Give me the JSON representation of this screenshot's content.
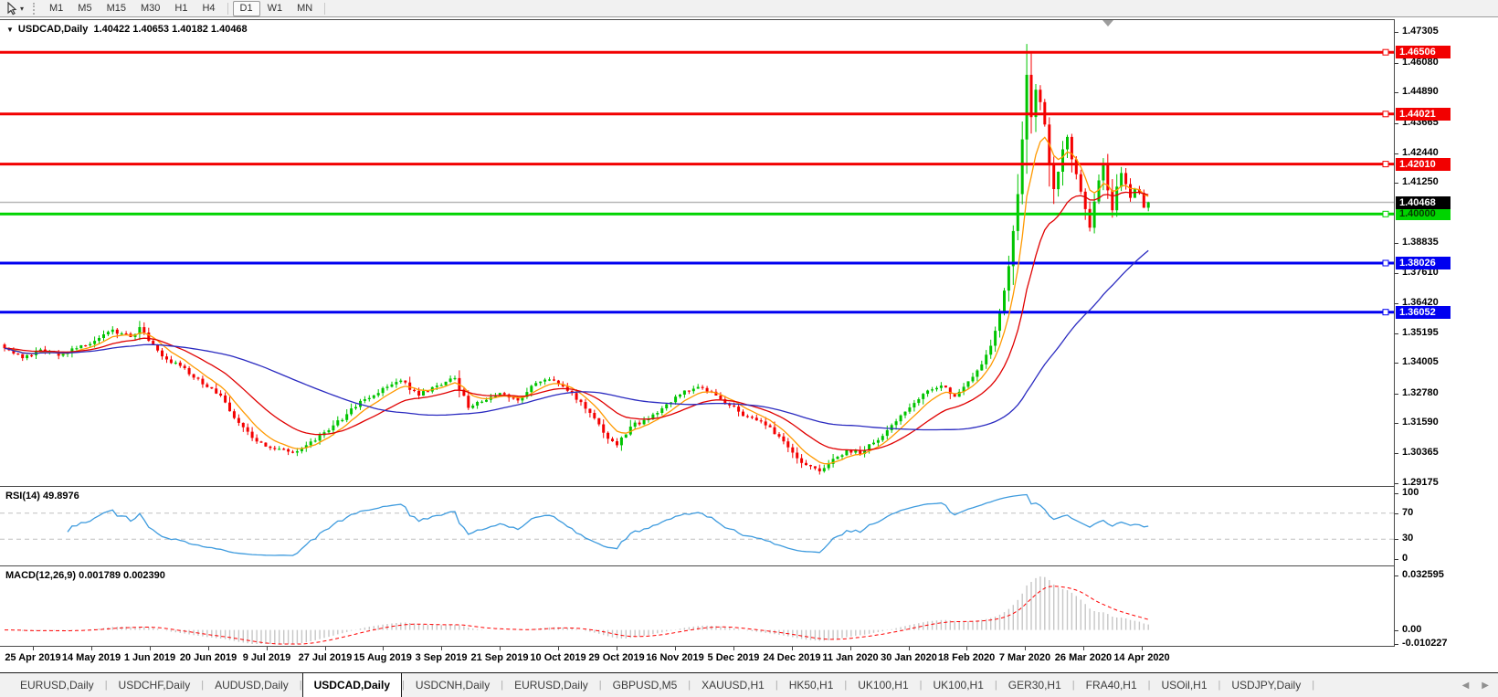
{
  "toolbar": {
    "tool_icon": "pointer-cursor",
    "timeframes": [
      "M1",
      "M5",
      "M15",
      "M30",
      "H1",
      "H4",
      "D1",
      "W1",
      "MN"
    ],
    "active_timeframe": "D1"
  },
  "chart": {
    "title_symbol": "USDCAD,Daily",
    "ohlc_text": "1.40422 1.40653 1.40182 1.40468"
  },
  "chart_data": {
    "type": "candlestick",
    "symbol": "USDCAD",
    "period": "Daily",
    "bars": 255,
    "seed": 42,
    "ohlc_current": {
      "open": 1.40422,
      "high": 1.40653,
      "low": 1.40182,
      "close": 1.40468
    },
    "candle_colors": {
      "up": "#00c400",
      "down": "#f40000"
    },
    "price_axis": {
      "max": 1.478,
      "min": 1.2906,
      "ticks": [
        "1.47305",
        "1.46080",
        "1.44890",
        "1.43665",
        "1.42440",
        "1.41250",
        "1.38835",
        "1.37610",
        "1.36420",
        "1.35195",
        "1.34005",
        "1.32780",
        "1.31590",
        "1.30365",
        "1.29175"
      ]
    },
    "hlines": [
      {
        "price": 1.46506,
        "label": "1.46506",
        "color": "#f20000",
        "badge_bg": "#f20000",
        "badge_fg": "#ffffff",
        "width": 3
      },
      {
        "price": 1.44021,
        "label": "1.44021",
        "color": "#f20000",
        "badge_bg": "#f20000",
        "badge_fg": "#ffffff",
        "width": 3
      },
      {
        "price": 1.4201,
        "label": "1.42010",
        "color": "#f20000",
        "badge_bg": "#f20000",
        "badge_fg": "#ffffff",
        "width": 3
      },
      {
        "price": 1.4,
        "label": "1.40000",
        "color": "#00d400",
        "badge_bg": "#00d400",
        "badge_fg": "#063800",
        "width": 3
      },
      {
        "price": 1.38026,
        "label": "1.38026",
        "color": "#0000f0",
        "badge_bg": "#0000f0",
        "badge_fg": "#ffffff",
        "width": 3
      },
      {
        "price": 1.36052,
        "label": "1.36052",
        "color": "#0000f0",
        "badge_bg": "#0000f0",
        "badge_fg": "#ffffff",
        "width": 3
      }
    ],
    "current_price": {
      "value": 1.40468,
      "label": "1.40468",
      "line_color": "#b8b8b8",
      "badge_bg": "#000000",
      "badge_fg": "#ffffff"
    },
    "moving_averages": [
      {
        "type": "ema",
        "period": 7,
        "color": "#ff9900"
      },
      {
        "type": "ema",
        "period": 20,
        "color": "#e00000"
      },
      {
        "type": "sma",
        "period": 52,
        "color": "#2a2ac0"
      }
    ],
    "close_anchors": [
      [
        0,
        1.346
      ],
      [
        4,
        1.342
      ],
      [
        8,
        1.3455
      ],
      [
        12,
        1.343
      ],
      [
        16,
        1.346
      ],
      [
        20,
        1.349
      ],
      [
        24,
        1.3535
      ],
      [
        28,
        1.3505
      ],
      [
        30,
        1.3545
      ],
      [
        33,
        1.3475
      ],
      [
        36,
        1.3415
      ],
      [
        40,
        1.338
      ],
      [
        44,
        1.3315
      ],
      [
        48,
        1.327
      ],
      [
        52,
        1.316
      ],
      [
        56,
        1.3085
      ],
      [
        60,
        1.3055
      ],
      [
        64,
        1.304
      ],
      [
        68,
        1.3085
      ],
      [
        72,
        1.313
      ],
      [
        76,
        1.3195
      ],
      [
        80,
        1.3255
      ],
      [
        84,
        1.33
      ],
      [
        88,
        1.333
      ],
      [
        92,
        1.327
      ],
      [
        96,
        1.331
      ],
      [
        100,
        1.334
      ],
      [
        103,
        1.322
      ],
      [
        106,
        1.3245
      ],
      [
        110,
        1.328
      ],
      [
        114,
        1.325
      ],
      [
        118,
        1.332
      ],
      [
        122,
        1.333
      ],
      [
        126,
        1.328
      ],
      [
        130,
        1.32
      ],
      [
        133,
        1.312
      ],
      [
        136,
        1.307
      ],
      [
        139,
        1.3145
      ],
      [
        143,
        1.3175
      ],
      [
        147,
        1.3235
      ],
      [
        151,
        1.329
      ],
      [
        155,
        1.33
      ],
      [
        158,
        1.327
      ],
      [
        161,
        1.323
      ],
      [
        165,
        1.3185
      ],
      [
        169,
        1.315
      ],
      [
        172,
        1.3105
      ],
      [
        175,
        1.304
      ],
      [
        178,
        1.299
      ],
      [
        181,
        1.2965
      ],
      [
        184,
        1.3015
      ],
      [
        187,
        1.305
      ],
      [
        190,
        1.3035
      ],
      [
        193,
        1.308
      ],
      [
        196,
        1.313
      ],
      [
        199,
        1.319
      ],
      [
        202,
        1.324
      ],
      [
        205,
        1.329
      ],
      [
        208,
        1.331
      ],
      [
        211,
        1.3265
      ],
      [
        213,
        1.3305
      ],
      [
        215,
        1.3345
      ],
      [
        217,
        1.3395
      ],
      [
        219,
        1.347
      ],
      [
        221,
        1.36
      ],
      [
        223,
        1.379
      ],
      [
        225,
        1.408
      ],
      [
        226,
        1.43
      ],
      [
        227,
        1.456
      ],
      [
        228,
        1.439
      ],
      [
        229,
        1.45
      ],
      [
        230,
        1.445
      ],
      [
        231,
        1.436
      ],
      [
        232,
        1.42
      ],
      [
        233,
        1.41
      ],
      [
        234,
        1.417
      ],
      [
        235,
        1.426
      ],
      [
        236,
        1.431
      ],
      [
        237,
        1.422
      ],
      [
        238,
        1.416
      ],
      [
        239,
        1.409
      ],
      [
        240,
        1.402
      ],
      [
        241,
        1.3945
      ],
      [
        242,
        1.405
      ],
      [
        243,
        1.4135
      ],
      [
        244,
        1.42
      ],
      [
        245,
        1.4095
      ],
      [
        246,
        1.4015
      ],
      [
        247,
        1.411
      ],
      [
        248,
        1.4165
      ],
      [
        249,
        1.412
      ],
      [
        250,
        1.4065
      ],
      [
        251,
        1.41
      ],
      [
        252,
        1.4085
      ],
      [
        253,
        1.4025
      ],
      [
        254,
        1.40468
      ]
    ],
    "overrides": {
      "30": {
        "high": 1.357
      },
      "181": {
        "low": 1.2952
      },
      "227": {
        "high": 1.4684
      }
    },
    "rsi": {
      "text": "RSI(14) 49.8976",
      "period": 14,
      "value": 49.8976,
      "levels": [
        "100",
        "70",
        "30",
        "0"
      ],
      "level_values": [
        100,
        70,
        30,
        0
      ],
      "dashed_levels": [
        70,
        30
      ],
      "range": {
        "max": 110,
        "min": -10
      },
      "color": "#3e9bde",
      "level_color": "#bfbfbf"
    },
    "macd": {
      "text": "MACD(12,26,9) 0.001789 0.002390",
      "fast": 12,
      "slow": 26,
      "signal": 9,
      "main_value": 0.001789,
      "signal_value": 0.00239,
      "axis_labels": [
        "0.032595",
        "0.00",
        "-0.010227"
      ],
      "axis_values": [
        0.032595,
        0,
        -0.010227
      ],
      "range": {
        "max": 0.038,
        "min": -0.0095
      },
      "hist_color": "#c6c6c6",
      "signal_color": "#ff0000"
    },
    "date_labels": [
      "25 Apr 2019",
      "14 May 2019",
      "1 Jun 2019",
      "20 Jun 2019",
      "9 Jul 2019",
      "27 Jul 2019",
      "15 Aug 2019",
      "3 Sep 2019",
      "21 Sep 2019",
      "10 Oct 2019",
      "29 Oct 2019",
      "16 Nov 2019",
      "5 Dec 2019",
      "24 Dec 2019",
      "11 Jan 2020",
      "30 Jan 2020",
      "18 Feb 2020",
      "7 Mar 2020",
      "26 Mar 2020",
      "14 Apr 2020"
    ]
  },
  "tabs": {
    "items": [
      "EURUSD,Daily",
      "USDCHF,Daily",
      "AUDUSD,Daily",
      "USDCAD,Daily",
      "USDCNH,Daily",
      "EURUSD,Daily",
      "GBPUSD,M5",
      "XAUUSD,H1",
      "HK50,H1",
      "UK100,H1",
      "UK100,H1",
      "GER30,H1",
      "FRA40,H1",
      "USOil,H1",
      "USDJPY,Daily"
    ],
    "active_index": 3
  }
}
